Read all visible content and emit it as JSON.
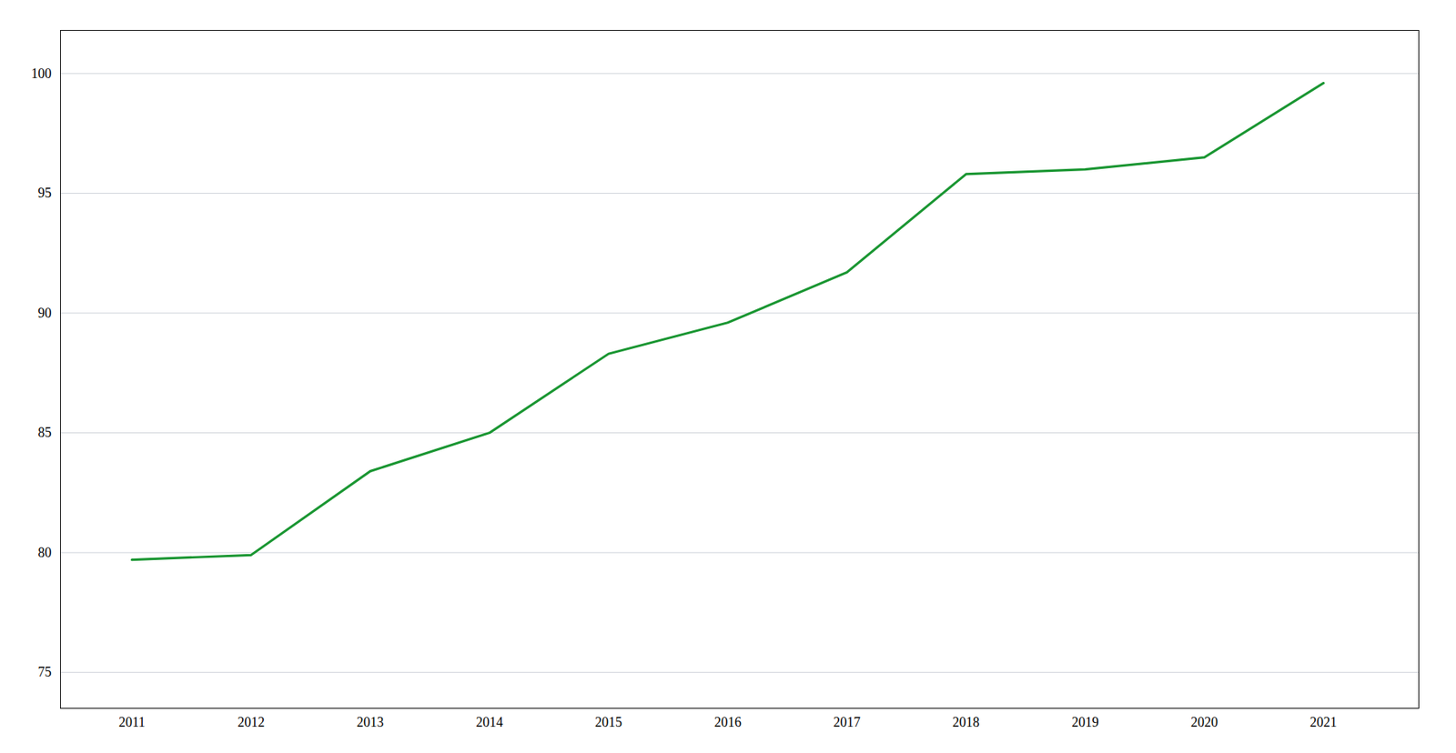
{
  "chart_data": {
    "type": "line",
    "x": [
      2011,
      2012,
      2013,
      2014,
      2015,
      2016,
      2017,
      2018,
      2019,
      2020,
      2021
    ],
    "values": [
      79.7,
      79.9,
      83.4,
      85.0,
      88.3,
      89.6,
      91.7,
      95.8,
      96.0,
      96.5,
      99.6
    ],
    "color": "#1a9632",
    "xlim": [
      2010.4,
      2021.8
    ],
    "xticks": [
      2011,
      2012,
      2013,
      2014,
      2015,
      2016,
      2017,
      2018,
      2019,
      2020,
      2021
    ],
    "ylim": [
      73.5,
      101.8
    ],
    "yticks": [
      75,
      80,
      85,
      90,
      95,
      100
    ],
    "grid": "y"
  }
}
